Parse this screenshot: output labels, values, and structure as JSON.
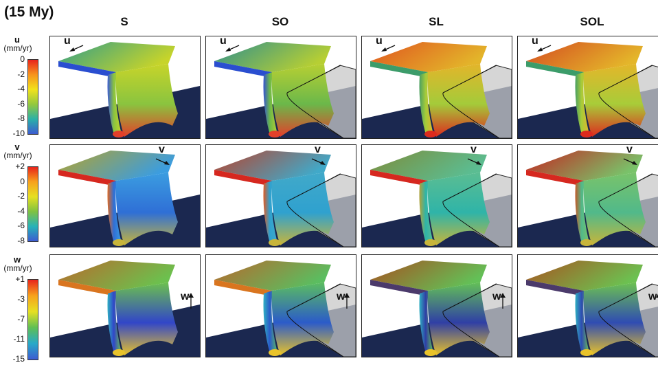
{
  "title": "(15 My)",
  "columns": [
    "S",
    "SO",
    "SL",
    "SOL"
  ],
  "legends": [
    {
      "var": "u",
      "unit": "(mm/yr)",
      "ticks": [
        "0",
        "-2",
        "-4",
        "-6",
        "-8",
        "-10"
      ],
      "colors": [
        "#e8231c",
        "#f7941d",
        "#f2e21b",
        "#93c83e",
        "#2bb0a8",
        "#3d5bd1"
      ]
    },
    {
      "var": "v",
      "unit": "(mm/yr)",
      "ticks": [
        "+2",
        "0",
        "-2",
        "-4",
        "-6",
        "-8"
      ],
      "colors": [
        "#e8231c",
        "#f7a21d",
        "#e6e022",
        "#7fc241",
        "#27b2b8",
        "#3d5bd1"
      ]
    },
    {
      "var": "w",
      "unit": "(mm/yr)",
      "ticks": [
        "+1",
        "-3",
        "-7",
        "-11",
        "-15"
      ],
      "colors": [
        "#e8231c",
        "#f7a21d",
        "#e6e022",
        "#5fbf55",
        "#27a9c8",
        "#3d5bd1"
      ]
    }
  ],
  "rows": [
    {
      "label": "u",
      "panels": [
        {
          "top": "#2f9d8a",
          "topEdge": "#2a4ed0",
          "front": "#8ac43f",
          "frontEdge": "#3b5bd3",
          "body": "#c7d42a",
          "foot": "#e2402a",
          "overlay": false
        },
        {
          "top": "#2d8f8e",
          "topEdge": "#2a4ed0",
          "front": "#6bb84a",
          "frontEdge": "#3451d0",
          "body": "#b7cf33",
          "foot": "#e2402a",
          "overlay": true
        },
        {
          "top": "#e0541f",
          "topEdge": "#3c9c6a",
          "front": "#a4cb3a",
          "frontEdge": "#4a9f63",
          "body": "#e3b52a",
          "foot": "#dd2b1e",
          "overlay": true
        },
        {
          "top": "#d44a20",
          "topEdge": "#3c9c6a",
          "front": "#a8cc39",
          "frontEdge": "#4a9f63",
          "body": "#e4b62a",
          "foot": "#dd2b1e",
          "overlay": true
        }
      ]
    },
    {
      "label": "v",
      "panels": [
        {
          "top": "#b5a32a",
          "topEdge": "#d6281f",
          "front": "#2f6fd6",
          "frontEdge": "#e06a22",
          "body": "#3b9de0",
          "foot": "#c8b53a",
          "overlay": false
        },
        {
          "top": "#b9412a",
          "topEdge": "#d6281f",
          "front": "#2fa1cf",
          "frontEdge": "#e05a22",
          "body": "#41a9c9",
          "foot": "#c8b53a",
          "overlay": true
        },
        {
          "top": "#7e8c3a",
          "topEdge": "#d6281f",
          "front": "#2fb4a8",
          "frontEdge": "#b2a23a",
          "body": "#5bbd92",
          "foot": "#c8b53a",
          "overlay": true
        },
        {
          "top": "#c5231f",
          "topEdge": "#d6281f",
          "front": "#51b98a",
          "frontEdge": "#c45a28",
          "body": "#79c36a",
          "foot": "#c8b53a",
          "overlay": true
        }
      ]
    },
    {
      "label": "w",
      "panels": [
        {
          "top": "#b96a2b",
          "topEdge": "#d9751f",
          "front": "#3146c8",
          "frontEdge": "#2fb0c2",
          "body": "#6cc04e",
          "foot": "#e9c32a",
          "overlay": false
        },
        {
          "top": "#b9682b",
          "topEdge": "#d9751f",
          "front": "#2b5bc9",
          "frontEdge": "#2fb0c2",
          "body": "#5bbd60",
          "foot": "#e9c32a",
          "overlay": true
        },
        {
          "top": "#a8501f",
          "topEdge": "#4b3a6b",
          "front": "#2f3fa5",
          "frontEdge": "#2fb0c2",
          "body": "#63c057",
          "foot": "#e9c32a",
          "overlay": true
        },
        {
          "top": "#a9531f",
          "topEdge": "#4b3a6b",
          "front": "#2f4cb2",
          "frontEdge": "#2fb0c2",
          "body": "#6cc151",
          "foot": "#e9c32a",
          "overlay": true
        }
      ]
    }
  ]
}
